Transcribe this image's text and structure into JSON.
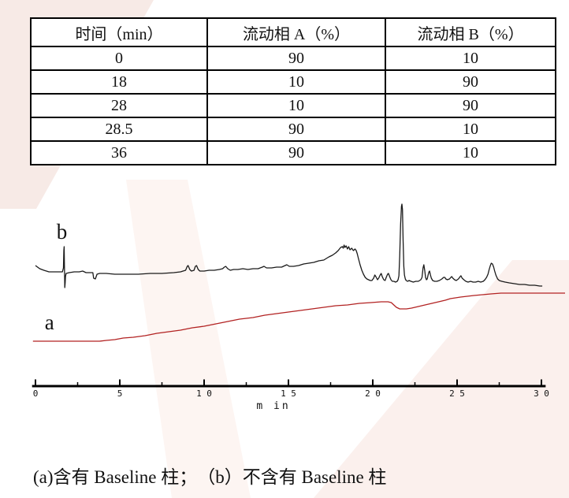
{
  "table": {
    "headers": [
      "时间（min）",
      "流动相 A（%）",
      "流动相 B（%）"
    ],
    "rows": [
      [
        "0",
        "90",
        "10"
      ],
      [
        "18",
        "10",
        "90"
      ],
      [
        "28",
        "10",
        "90"
      ],
      [
        "28.5",
        "90",
        "10"
      ],
      [
        "36",
        "90",
        "10"
      ]
    ]
  },
  "caption": "(a)含有 Baseline 柱；　（b）不含有 Baseline 柱",
  "colors": {
    "trace_b": "#1a1a1a",
    "trace_a": "#b22222",
    "axis": "#000000",
    "table_border": "#000000",
    "watermark_pink": "#f7eae6"
  },
  "chart_data": {
    "type": "line",
    "title": "",
    "xlabel": "m in",
    "ylabel": "",
    "x_range": [
      0,
      30
    ],
    "grid": false,
    "legend_position": "none",
    "x_ticks": {
      "positions": [
        0,
        5,
        10,
        15,
        20,
        25,
        30
      ],
      "labels": [
        "0",
        "5",
        "1 0",
        "1 5",
        "2 0",
        "2 5",
        "3 0"
      ]
    },
    "x_minor_ticks": [
      2.5,
      7.5,
      12.5,
      17.5,
      22.5,
      27.5
    ],
    "annotations": [
      {
        "text": "b",
        "x": 1.25,
        "y": 187
      },
      {
        "text": "a",
        "x": 0.55,
        "y": 72
      }
    ],
    "series": [
      {
        "name": "b",
        "color": "#1a1a1a",
        "points": [
          [
            0,
            153
          ],
          [
            0.25,
            149
          ],
          [
            0.5,
            147
          ],
          [
            0.8,
            145
          ],
          [
            1.1,
            145
          ],
          [
            1.4,
            145
          ],
          [
            1.6,
            145
          ],
          [
            1.66,
            150
          ],
          [
            1.68,
            172
          ],
          [
            1.7,
            177
          ],
          [
            1.72,
            150
          ],
          [
            1.74,
            125
          ],
          [
            1.76,
            131
          ],
          [
            1.78,
            139
          ],
          [
            1.82,
            143
          ],
          [
            2,
            144
          ],
          [
            2.3,
            145
          ],
          [
            2.6,
            145
          ],
          [
            2.8,
            146
          ],
          [
            3,
            144
          ],
          [
            3.2,
            144
          ],
          [
            3.4,
            144
          ],
          [
            3.45,
            137
          ],
          [
            3.55,
            136
          ],
          [
            3.65,
            142
          ],
          [
            3.8,
            143
          ],
          [
            4.2,
            143
          ],
          [
            4.7,
            142
          ],
          [
            5.4,
            142
          ],
          [
            6.1,
            142
          ],
          [
            6.8,
            143
          ],
          [
            7.5,
            143
          ],
          [
            8.2,
            144
          ],
          [
            8.6,
            145
          ],
          [
            8.9,
            147
          ],
          [
            9,
            152
          ],
          [
            9.05,
            153
          ],
          [
            9.15,
            148
          ],
          [
            9.25,
            146
          ],
          [
            9.4,
            147
          ],
          [
            9.48,
            152
          ],
          [
            9.55,
            153
          ],
          [
            9.65,
            148
          ],
          [
            9.75,
            146
          ],
          [
            10,
            146
          ],
          [
            10.3,
            147
          ],
          [
            10.6,
            147
          ],
          [
            10.9,
            148
          ],
          [
            11.1,
            149
          ],
          [
            11.2,
            151
          ],
          [
            11.28,
            152
          ],
          [
            11.4,
            149
          ],
          [
            11.55,
            147
          ],
          [
            11.75,
            148
          ],
          [
            12,
            148
          ],
          [
            12.3,
            149
          ],
          [
            12.6,
            148
          ],
          [
            12.9,
            149
          ],
          [
            13.2,
            149
          ],
          [
            13.45,
            151
          ],
          [
            13.55,
            152
          ],
          [
            13.7,
            150
          ],
          [
            14,
            150
          ],
          [
            14.3,
            151
          ],
          [
            14.6,
            151
          ],
          [
            14.8,
            153
          ],
          [
            14.9,
            154
          ],
          [
            15.05,
            152
          ],
          [
            15.3,
            152
          ],
          [
            15.6,
            153
          ],
          [
            15.9,
            155
          ],
          [
            16.2,
            156
          ],
          [
            16.5,
            157
          ],
          [
            16.8,
            159
          ],
          [
            17.1,
            160
          ],
          [
            17.25,
            162
          ],
          [
            17.4,
            164
          ],
          [
            17.6,
            166
          ],
          [
            17.8,
            169
          ],
          [
            17.95,
            172
          ],
          [
            18.1,
            176
          ],
          [
            18.2,
            177
          ],
          [
            18.25,
            175
          ],
          [
            18.3,
            179
          ],
          [
            18.35,
            176
          ],
          [
            18.42,
            178
          ],
          [
            18.5,
            174
          ],
          [
            18.57,
            177
          ],
          [
            18.65,
            173
          ],
          [
            18.75,
            175
          ],
          [
            18.85,
            172
          ],
          [
            18.95,
            174
          ],
          [
            19.02,
            172
          ],
          [
            19.08,
            168
          ],
          [
            19.15,
            162
          ],
          [
            19.25,
            154
          ],
          [
            19.35,
            147
          ],
          [
            19.45,
            142
          ],
          [
            19.55,
            138
          ],
          [
            19.65,
            136
          ],
          [
            19.75,
            135
          ],
          [
            19.85,
            134
          ],
          [
            19.95,
            134
          ],
          [
            20.05,
            137
          ],
          [
            20.12,
            141
          ],
          [
            20.18,
            139
          ],
          [
            20.28,
            135
          ],
          [
            20.35,
            137
          ],
          [
            20.44,
            141
          ],
          [
            20.5,
            143
          ],
          [
            20.56,
            139
          ],
          [
            20.65,
            135
          ],
          [
            20.73,
            134
          ],
          [
            20.8,
            138
          ],
          [
            20.88,
            142
          ],
          [
            20.93,
            143
          ],
          [
            21,
            139
          ],
          [
            21.08,
            135
          ],
          [
            21.16,
            133
          ],
          [
            21.25,
            133
          ],
          [
            21.35,
            132
          ],
          [
            21.45,
            133
          ],
          [
            21.5,
            135
          ],
          [
            21.55,
            140
          ],
          [
            21.6,
            165
          ],
          [
            21.65,
            205
          ],
          [
            21.7,
            228
          ],
          [
            21.73,
            231
          ],
          [
            21.76,
            224
          ],
          [
            21.8,
            185
          ],
          [
            21.84,
            152
          ],
          [
            21.88,
            141
          ],
          [
            21.93,
            136
          ],
          [
            21.98,
            134
          ],
          [
            22.06,
            133
          ],
          [
            22.16,
            134
          ],
          [
            22.26,
            133
          ],
          [
            22.4,
            132
          ],
          [
            22.55,
            133
          ],
          [
            22.7,
            133
          ],
          [
            22.85,
            135
          ],
          [
            22.92,
            138
          ],
          [
            22.98,
            150
          ],
          [
            23.03,
            154
          ],
          [
            23.08,
            147
          ],
          [
            23.13,
            138
          ],
          [
            23.18,
            135
          ],
          [
            23.23,
            136
          ],
          [
            23.28,
            141
          ],
          [
            23.33,
            145
          ],
          [
            23.37,
            146
          ],
          [
            23.42,
            141
          ],
          [
            23.47,
            137
          ],
          [
            23.55,
            134
          ],
          [
            23.67,
            133
          ],
          [
            23.8,
            133
          ],
          [
            23.95,
            134
          ],
          [
            24.1,
            136
          ],
          [
            24.2,
            138
          ],
          [
            24.27,
            138
          ],
          [
            24.33,
            136
          ],
          [
            24.42,
            135
          ],
          [
            24.55,
            136
          ],
          [
            24.63,
            138
          ],
          [
            24.68,
            139
          ],
          [
            24.75,
            137
          ],
          [
            24.85,
            135
          ],
          [
            24.95,
            134
          ],
          [
            25.08,
            136
          ],
          [
            25.18,
            139
          ],
          [
            25.23,
            140
          ],
          [
            25.3,
            137
          ],
          [
            25.4,
            135
          ],
          [
            25.52,
            133
          ],
          [
            25.65,
            132
          ],
          [
            25.8,
            133
          ],
          [
            25.95,
            132
          ],
          [
            26.1,
            132
          ],
          [
            26.25,
            133
          ],
          [
            26.4,
            132
          ],
          [
            26.55,
            133
          ],
          [
            26.65,
            135
          ],
          [
            26.75,
            138
          ],
          [
            26.83,
            142
          ],
          [
            26.9,
            148
          ],
          [
            26.97,
            153
          ],
          [
            27.03,
            156
          ],
          [
            27.1,
            155
          ],
          [
            27.17,
            151
          ],
          [
            27.23,
            146
          ],
          [
            27.3,
            141
          ],
          [
            27.4,
            136
          ],
          [
            27.5,
            134
          ],
          [
            27.65,
            133
          ],
          [
            27.85,
            132
          ],
          [
            28.1,
            131
          ],
          [
            28.4,
            130
          ],
          [
            28.7,
            129
          ],
          [
            29,
            129
          ],
          [
            29.3,
            128
          ],
          [
            29.6,
            128
          ],
          [
            29.9,
            127
          ],
          [
            30.05,
            127
          ]
        ]
      },
      {
        "name": "a",
        "color": "#b22222",
        "points": [
          [
            -0.15,
            57
          ],
          [
            0.5,
            57
          ],
          [
            1.5,
            57
          ],
          [
            2.5,
            57
          ],
          [
            3.3,
            57
          ],
          [
            3.8,
            57
          ],
          [
            4.2,
            58
          ],
          [
            4.7,
            59
          ],
          [
            5.2,
            61
          ],
          [
            5.8,
            62
          ],
          [
            6.5,
            64
          ],
          [
            7.2,
            67
          ],
          [
            7.9,
            69
          ],
          [
            8.6,
            71
          ],
          [
            9.3,
            74
          ],
          [
            10,
            76
          ],
          [
            10.7,
            79
          ],
          [
            11.4,
            82
          ],
          [
            12.1,
            85
          ],
          [
            12.9,
            87
          ],
          [
            13.6,
            90
          ],
          [
            14.3,
            92
          ],
          [
            15,
            94
          ],
          [
            15.7,
            96
          ],
          [
            16.4,
            98
          ],
          [
            17.1,
            100
          ],
          [
            17.8,
            102
          ],
          [
            18.5,
            103
          ],
          [
            19.2,
            105
          ],
          [
            19.9,
            106
          ],
          [
            20.5,
            107
          ],
          [
            20.9,
            107
          ],
          [
            21.1,
            106
          ],
          [
            21.25,
            103
          ],
          [
            21.4,
            100
          ],
          [
            21.6,
            98
          ],
          [
            21.8,
            98
          ],
          [
            22,
            98
          ],
          [
            22.3,
            99
          ],
          [
            22.7,
            101
          ],
          [
            23.1,
            103
          ],
          [
            23.5,
            105
          ],
          [
            23.9,
            107
          ],
          [
            24.3,
            109
          ],
          [
            24.6,
            111
          ],
          [
            24.9,
            112
          ],
          [
            25.2,
            113
          ],
          [
            25.6,
            114
          ],
          [
            26,
            115
          ],
          [
            26.5,
            116
          ],
          [
            27,
            117
          ],
          [
            27.6,
            118
          ],
          [
            28.3,
            118
          ],
          [
            29,
            118
          ],
          [
            29.7,
            118
          ],
          [
            30.4,
            118
          ],
          [
            31.4,
            118
          ]
        ]
      }
    ]
  }
}
